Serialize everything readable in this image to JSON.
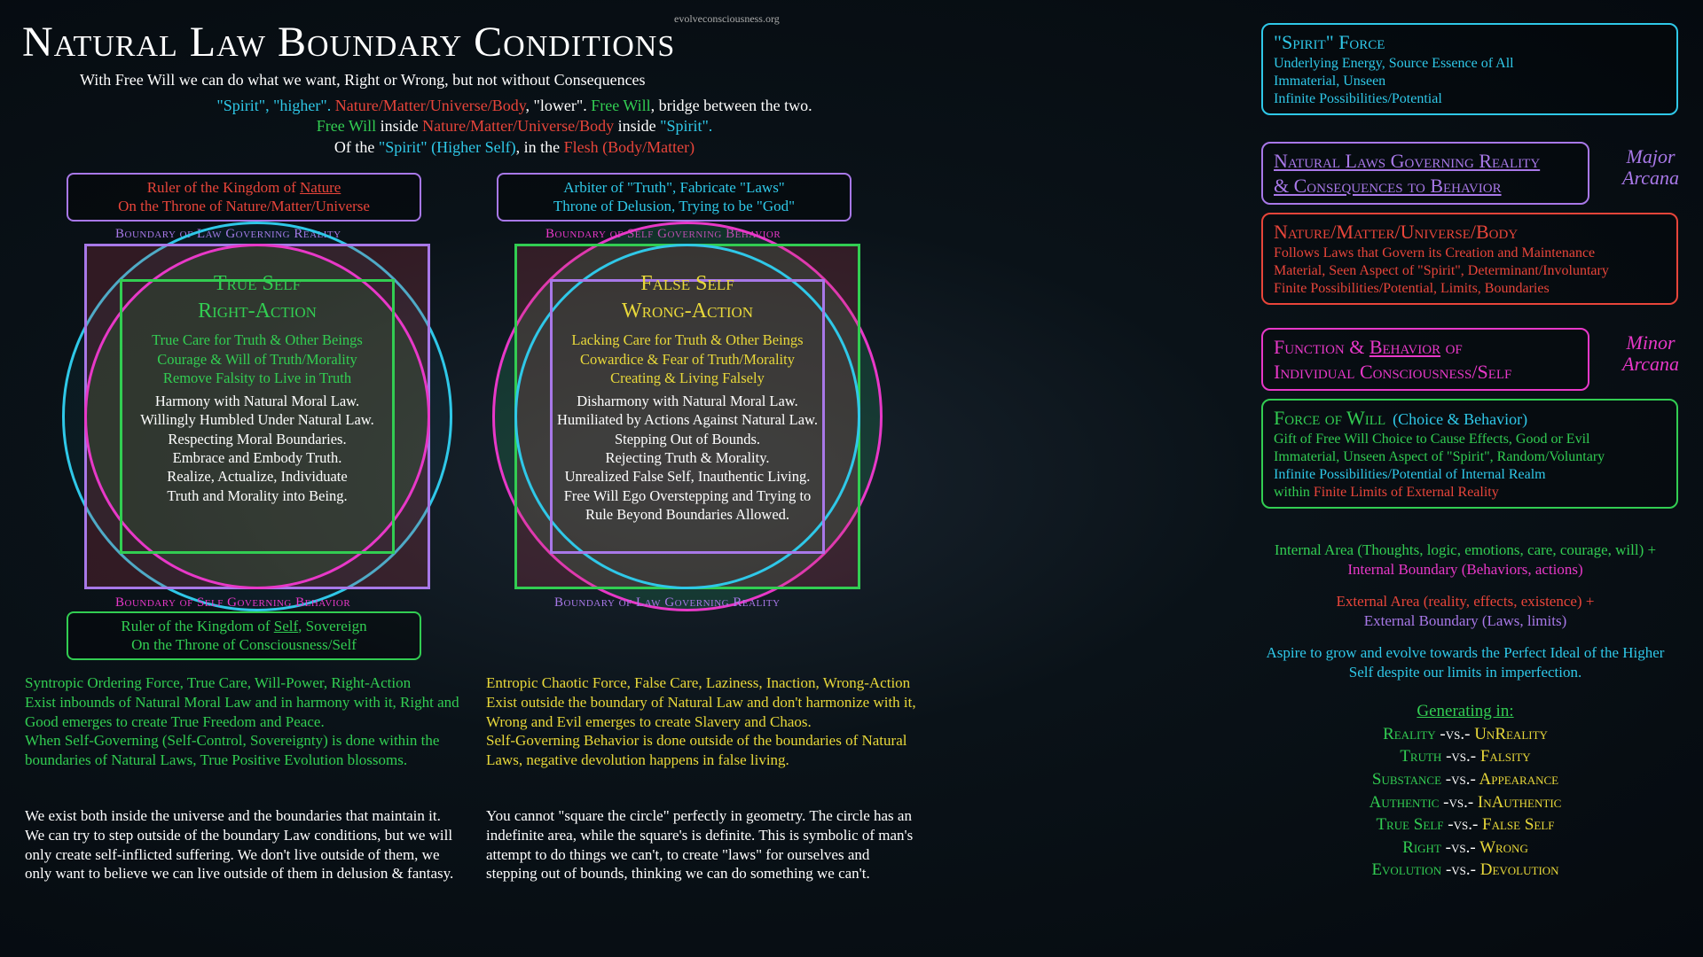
{
  "title": "Natural Law Boundary Conditions",
  "subtitle": "With Free Will we can do what we want, Right or Wrong, but not without Consequences",
  "attribution": "evolveconsciousness.org",
  "intro": {
    "l1a": "\"Spirit\", \"higher\".",
    "l1b": "Nature/Matter/Universe/Body",
    "l1c": ", \"lower\".",
    "l1d": "Free Will",
    "l1e": ", bridge between the two.",
    "l2a": "Free Will",
    "l2b": " inside ",
    "l2c": "Nature/Matter/Universe/Body",
    "l2d": " inside ",
    "l2e": "\"Spirit\".",
    "l3a": "Of the ",
    "l3b": "\"Spirit\" (Higher Self)",
    "l3c": ", in the ",
    "l3d": "Flesh (Body/Matter)"
  },
  "left": {
    "top1": "Ruler of the Kingdom of ",
    "top1u": "Nature",
    "top2": "On the Throne of Nature/Matter/Universe",
    "outerBoundary": "Boundary of Law Governing Reality",
    "innerBoundary": "Boundary of Self Governing Behavior",
    "h1": "True Self",
    "h2": "Right-Action",
    "g1": "True Care for Truth & Other Beings",
    "g2": "Courage & Will of Truth/Morality",
    "g3": "Remove Falsity to Live in Truth",
    "w1": "Harmony with Natural Moral Law.",
    "w2": "Willingly Humbled Under Natural Law.",
    "w3": "Respecting Moral Boundaries.",
    "w4": "Embrace and Embody Truth.",
    "w5": "Realize, Actualize, Individuate",
    "w6": "Truth and Morality into Being.",
    "bot1a": "Ruler of the Kingdom of ",
    "bot1u": "Self",
    "bot1b": ", Sovereign",
    "bot2": "On the Throne of Consciousness/Self",
    "p1": "Syntropic Ordering Force, True Care, Will-Power, Right-Action\nExist inbounds of Natural Moral Law and in harmony with it, Right and Good emerges to create True Freedom and Peace.\nWhen Self-Governing (Self-Control, Sovereignty) is done within the boundaries of Natural Laws, True Positive Evolution blossoms.",
    "p2": "We exist both inside the universe and the boundaries that maintain it. We can try to step outside of the boundary Law conditions, but we will only create self-inflicted suffering. We don't live outside of them, we only want to believe we can live outside of them in delusion & fantasy."
  },
  "right": {
    "top1": "Arbiter of \"Truth\", Fabricate \"Laws\"",
    "top2": "Throne of Delusion, Trying to be \"God\"",
    "outerBoundary": "Boundary of Self Governing Behavior",
    "innerBoundary": "Boundary of Law Governing Reality",
    "h1": "False Self",
    "h2": "Wrong-Action",
    "y1": "Lacking Care for Truth & Other Beings",
    "y2": "Cowardice & Fear of Truth/Morality",
    "y3": "Creating & Living Falsely",
    "w1": "Disharmony with Natural Moral Law.",
    "w2": "Humiliated by Actions Against Natural Law.",
    "w3": "Stepping Out of Bounds.",
    "w4": "Rejecting Truth & Morality.",
    "w5": "Unrealized False Self, Inauthentic Living.",
    "w6": "Free Will Ego Overstepping and Trying to",
    "w7": "Rule Beyond Boundaries Allowed.",
    "p1": "Entropic Chaotic Force, False Care, Laziness, Inaction, Wrong-Action\nExist outside the boundary of Natural Law and don't harmonize with it, Wrong and Evil emerges to create Slavery and Chaos.\nSelf-Governing Behavior is done outside of the boundaries of Natural Laws, negative devolution happens in false living.",
    "p2": "You cannot \"square the circle\" perfectly in geometry. The circle has an indefinite area, while the square's is definite. This is symbolic of man's attempt to do things we can't, to create \"laws\" for ourselves and stepping out of bounds, thinking we can do something we can't."
  },
  "panels": {
    "spirit": {
      "h": "\"Spirit\" Force",
      "l1": "Underlying Energy, Source Essence of All",
      "l2": "Immaterial, Unseen",
      "l3": "Infinite Possibilities/Potential"
    },
    "laws": {
      "h1": "Natural Laws Governing Reality",
      "h2": "& Consequences to Behavior"
    },
    "nature": {
      "h": "Nature/Matter/Universe/Body",
      "l1": "Follows Laws that Govern its Creation and Maintenance",
      "l2": "Material, Seen Aspect of \"Spirit\", Determinant/Involuntary",
      "l3": "Finite Possibilities/Potential, Limits, Boundaries"
    },
    "func": {
      "h1a": "Function & ",
      "h1u": "Behavior",
      "h1b": " of",
      "h2": "Individual Consciousness/Self"
    },
    "will": {
      "h": "Force of Will",
      "hs": "(Choice & Behavior)",
      "l1": "Gift of Free Will Choice to Cause Effects, Good or Evil",
      "l2": "Immaterial, Unseen Aspect of \"Spirit\", Random/Voluntary",
      "l3a": "Infinite Possibilities/Potential of Internal Realm",
      "l3b": "within ",
      "l3c": "Finite Limits of External Reality"
    }
  },
  "arcana": {
    "major": "Major Arcana",
    "minor": "Minor Arcana"
  },
  "rightText": {
    "r1a": "Internal Area (Thoughts, logic, emotions, care, courage, will) +",
    "r1b": "Internal Boundary (Behaviors, actions)",
    "r2a": "External Area (reality, effects, existence) +",
    "r2b": "External Boundary (Laws, limits)",
    "r3": "Aspire to grow and evolve towards the Perfect Ideal of the Higher Self despite our limits in imperfection."
  },
  "gen": {
    "h": "Generating in:",
    "rows": [
      [
        "Reality",
        "UnReality"
      ],
      [
        "Truth",
        "Falsity"
      ],
      [
        "Substance",
        "Appearance"
      ],
      [
        "Authentic",
        "InAuthentic"
      ],
      [
        "True Self",
        "False Self"
      ],
      [
        "Right",
        "Wrong"
      ],
      [
        "Evolution",
        "Devolution"
      ]
    ],
    "sep": " -vs.- "
  },
  "colors": {
    "cyan": "#2fc8e8",
    "red": "#e8453a",
    "green": "#32cd52",
    "yellow": "#e8d83a",
    "magenta": "#e838c8",
    "violet": "#a878e8"
  }
}
